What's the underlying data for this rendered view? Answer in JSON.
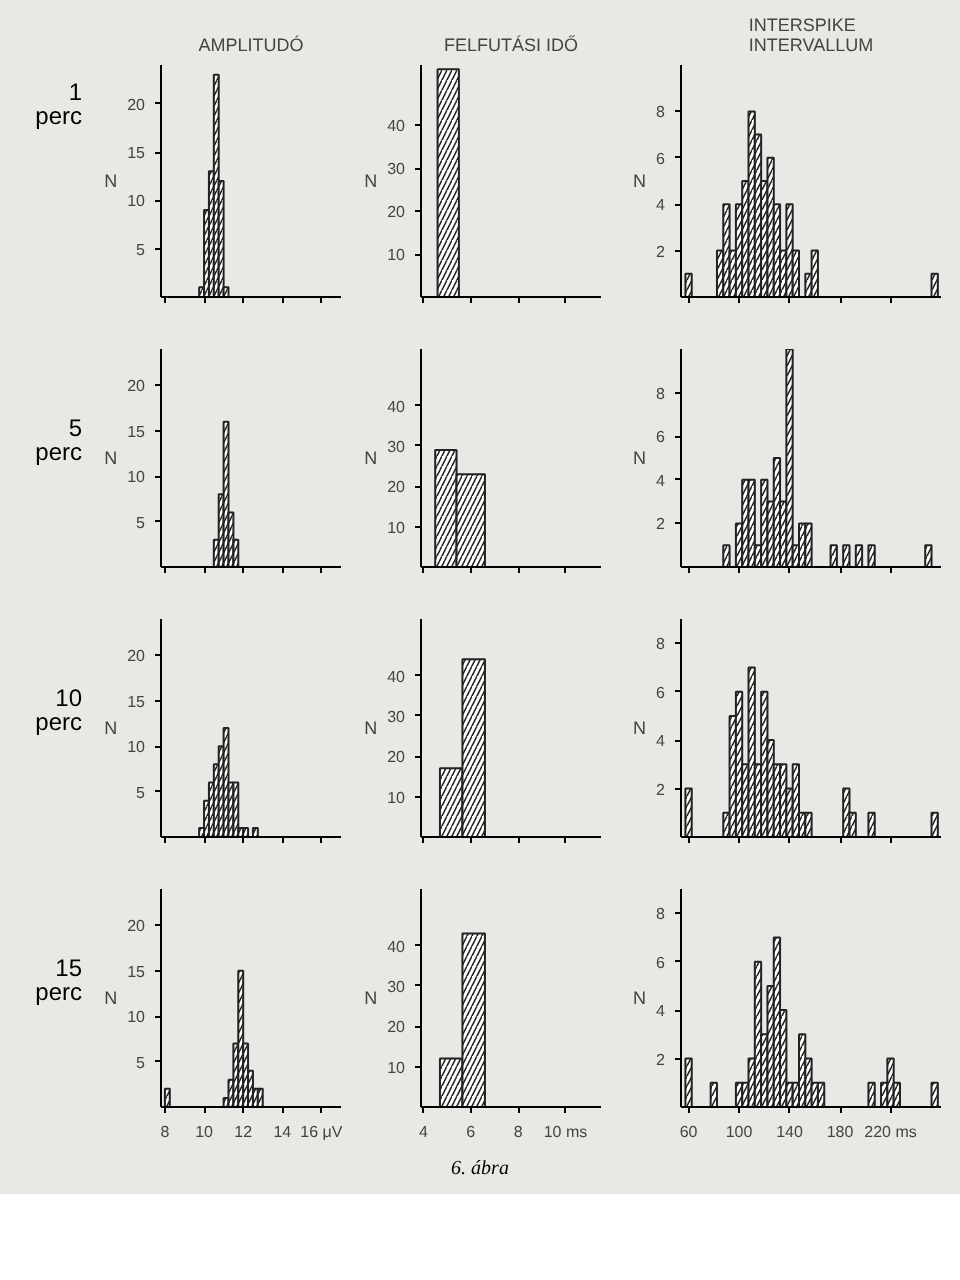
{
  "chart_data": [
    {
      "type": "histogram",
      "title": "AMPLITUDÓ",
      "ylabel": "N",
      "color": "#222222",
      "bins": [
        9.75,
        10,
        10.25,
        10.5,
        10.75,
        11,
        11.25
      ],
      "values": [
        1,
        9,
        13,
        23,
        12,
        1
      ],
      "xlim": [
        7.8,
        17
      ],
      "ylim": [
        0,
        24
      ],
      "xticks": [
        8,
        10,
        12,
        14,
        16
      ],
      "yticks": [
        5,
        10,
        15,
        20
      ],
      "tick_labels": "y",
      "annotations": [
        "1\nperc"
      ]
    },
    {
      "type": "histogram",
      "title": "FELFUTÁSI IDŐ",
      "ylabel": "N",
      "color": "#222222",
      "bins": [
        4.6,
        5.5
      ],
      "values": [
        53
      ],
      "xlim": [
        3.9,
        11.5
      ],
      "ylim": [
        0,
        54
      ],
      "xticks": [
        4,
        6,
        8,
        10
      ],
      "yticks": [
        10,
        20,
        30,
        40
      ],
      "tick_labels": "y"
    },
    {
      "type": "histogram",
      "title": "INTERSPIKE\nINTERVALLUM",
      "ylabel": "N",
      "color": "#222222",
      "bins": [
        57.5,
        62.5,
        67.5,
        72.5,
        77.5,
        82.5,
        87.5,
        92.5,
        97.5,
        102.5,
        107.5,
        112.5,
        117.5,
        122.5,
        127.5,
        132.5,
        137.5,
        142.5,
        147.5,
        152.5,
        157.5,
        162.5,
        167.5,
        172.5,
        177.5,
        182.5,
        187.5,
        192.5,
        197.5,
        202.5,
        207.5,
        212.5,
        217.5,
        222.5,
        227.5,
        232.5,
        237.5,
        242.5,
        247.5,
        252.5,
        257.5
      ],
      "values": [
        1,
        0,
        0,
        0,
        0,
        2,
        4,
        2,
        4,
        5,
        8,
        7,
        5,
        6,
        4,
        2,
        4,
        2,
        0,
        1,
        2,
        0,
        0,
        0,
        0,
        0,
        0,
        0,
        0,
        0,
        0,
        0,
        0,
        0,
        0,
        0,
        0,
        0,
        0,
        1
      ],
      "xlim": [
        54,
        260
      ],
      "ylim": [
        0,
        10
      ],
      "xticks": [
        60,
        100,
        140,
        180,
        220
      ],
      "yticks": [
        2,
        4,
        6,
        8
      ],
      "tick_labels": "y"
    },
    {
      "type": "histogram",
      "ylabel": "N",
      "color": "#222222",
      "bins": [
        10.5,
        10.75,
        11,
        11.25,
        11.5,
        11.75
      ],
      "values": [
        3,
        8,
        16,
        6,
        3
      ],
      "xlim": [
        7.8,
        17
      ],
      "ylim": [
        0,
        24
      ],
      "xticks": [
        8,
        10,
        12,
        14,
        16
      ],
      "yticks": [
        5,
        10,
        15,
        20
      ],
      "tick_labels": "y",
      "annotations": [
        "5\nperc"
      ]
    },
    {
      "type": "histogram",
      "ylabel": "N",
      "color": "#222222",
      "bins": [
        4.5,
        5.4,
        6.6
      ],
      "values": [
        29,
        23
      ],
      "xlim": [
        3.9,
        11.5
      ],
      "ylim": [
        0,
        54
      ],
      "xticks": [
        4,
        6,
        8,
        10
      ],
      "yticks": [
        10,
        20,
        30,
        40
      ],
      "tick_labels": "y"
    },
    {
      "type": "histogram",
      "ylabel": "N",
      "color": "#222222",
      "bins": [
        57.5,
        62.5,
        67.5,
        72.5,
        77.5,
        82.5,
        87.5,
        92.5,
        97.5,
        102.5,
        107.5,
        112.5,
        117.5,
        122.5,
        127.5,
        132.5,
        137.5,
        142.5,
        147.5,
        152.5,
        157.5,
        162.5,
        167.5,
        172.5,
        177.5,
        182.5,
        187.5,
        192.5,
        197.5,
        202.5,
        207.5,
        212.5,
        217.5,
        222.5,
        227.5,
        232.5,
        237.5,
        242.5,
        247.5,
        252.5,
        257.5
      ],
      "values": [
        0,
        0,
        0,
        0,
        0,
        0,
        1,
        0,
        2,
        4,
        4,
        1,
        4,
        3,
        5,
        3,
        10,
        1,
        2,
        2,
        0,
        0,
        0,
        1,
        0,
        1,
        0,
        1,
        0,
        1,
        0,
        0,
        0,
        0,
        0,
        0,
        0,
        0,
        1,
        0
      ],
      "xlim": [
        54,
        260
      ],
      "ylim": [
        0,
        10
      ],
      "xticks": [
        60,
        100,
        140,
        180,
        220
      ],
      "yticks": [
        2,
        4,
        6,
        8
      ],
      "tick_labels": "y"
    },
    {
      "type": "histogram",
      "ylabel": "N",
      "color": "#222222",
      "bins": [
        9.75,
        10,
        10.25,
        10.5,
        10.75,
        11,
        11.25,
        11.5,
        11.75,
        12,
        12.25,
        12.5,
        12.75
      ],
      "values": [
        1,
        4,
        6,
        8,
        10,
        12,
        6,
        6,
        1,
        1,
        0,
        1
      ],
      "xlim": [
        7.8,
        17
      ],
      "ylim": [
        0,
        24
      ],
      "xticks": [
        8,
        10,
        12,
        14,
        16
      ],
      "yticks": [
        5,
        10,
        15,
        20
      ],
      "tick_labels": "y",
      "annotations": [
        "10\nperc"
      ]
    },
    {
      "type": "histogram",
      "ylabel": "N",
      "color": "#222222",
      "bins": [
        4.7,
        5.65,
        6.6
      ],
      "values": [
        17,
        44
      ],
      "xlim": [
        3.9,
        11.5
      ],
      "ylim": [
        0,
        54
      ],
      "xticks": [
        4,
        6,
        8,
        10
      ],
      "yticks": [
        10,
        20,
        30,
        40
      ],
      "tick_labels": "y"
    },
    {
      "type": "histogram",
      "ylabel": "N",
      "color": "#222222",
      "bins": [
        57.5,
        62.5,
        67.5,
        72.5,
        77.5,
        82.5,
        87.5,
        92.5,
        97.5,
        102.5,
        107.5,
        112.5,
        117.5,
        122.5,
        127.5,
        132.5,
        137.5,
        142.5,
        147.5,
        152.5,
        157.5,
        162.5,
        167.5,
        172.5,
        177.5,
        182.5,
        187.5,
        192.5,
        197.5,
        202.5,
        207.5,
        212.5,
        217.5,
        222.5,
        227.5,
        232.5,
        237.5,
        242.5,
        247.5,
        252.5,
        257.5
      ],
      "values": [
        2,
        0,
        0,
        0,
        0,
        0,
        1,
        5,
        6,
        3,
        7,
        3,
        6,
        4,
        3,
        3,
        2,
        3,
        1,
        1,
        0,
        0,
        0,
        0,
        0,
        2,
        1,
        0,
        0,
        1,
        0,
        0,
        0,
        0,
        0,
        0,
        0,
        0,
        0,
        1
      ],
      "xlim": [
        54,
        260
      ],
      "ylim": [
        0,
        9
      ],
      "xticks": [
        60,
        100,
        140,
        180,
        220
      ],
      "yticks": [
        2,
        4,
        6,
        8
      ],
      "tick_labels": "y"
    },
    {
      "type": "histogram",
      "ylabel": "N",
      "color": "#222222",
      "bins": [
        8,
        8.25,
        8.5,
        8.75,
        9,
        9.25,
        9.5,
        9.75,
        10,
        10.25,
        10.5,
        10.75,
        11,
        11.25,
        11.5,
        11.75,
        12,
        12.25,
        12.5,
        12.75,
        13
      ],
      "values": [
        2,
        0,
        0,
        0,
        0,
        0,
        0,
        0,
        0,
        0,
        0,
        0,
        1,
        3,
        7,
        15,
        7,
        4,
        2,
        2
      ],
      "xlim": [
        7.8,
        17
      ],
      "ylim": [
        0,
        24
      ],
      "xticks": [
        8,
        10,
        12,
        14,
        {
          "value": 16,
          "label": "16 μV"
        }
      ],
      "yticks": [
        5,
        10,
        15,
        20
      ],
      "annotations": [
        "15\nperc"
      ]
    },
    {
      "type": "histogram",
      "ylabel": "N",
      "color": "#222222",
      "bins": [
        4.7,
        5.65,
        6.6
      ],
      "values": [
        12,
        43
      ],
      "xlim": [
        3.9,
        11.5
      ],
      "ylim": [
        0,
        54
      ],
      "xticks": [
        4,
        6,
        8,
        {
          "value": 10,
          "label": "10 ms"
        }
      ],
      "yticks": [
        10,
        20,
        30,
        40
      ],
      "annotations": [
        "6. ábra"
      ]
    },
    {
      "type": "histogram",
      "ylabel": "N",
      "color": "#222222",
      "bins": [
        57.5,
        62.5,
        67.5,
        72.5,
        77.5,
        82.5,
        87.5,
        92.5,
        97.5,
        102.5,
        107.5,
        112.5,
        117.5,
        122.5,
        127.5,
        132.5,
        137.5,
        142.5,
        147.5,
        152.5,
        157.5,
        162.5,
        167.5,
        172.5,
        177.5,
        182.5,
        187.5,
        192.5,
        197.5,
        202.5,
        207.5,
        212.5,
        217.5,
        222.5,
        227.5,
        232.5,
        237.5,
        242.5,
        247.5,
        252.5,
        257.5
      ],
      "values": [
        2,
        0,
        0,
        0,
        1,
        0,
        0,
        0,
        1,
        1,
        2,
        6,
        3,
        5,
        7,
        4,
        1,
        1,
        3,
        2,
        1,
        1,
        0,
        0,
        0,
        0,
        0,
        0,
        0,
        1,
        0,
        1,
        2,
        1,
        0,
        0,
        0,
        0,
        0,
        1
      ],
      "xlim": [
        54,
        260
      ],
      "ylim": [
        0,
        9
      ],
      "xticks": [
        60,
        100,
        140,
        180,
        {
          "value": 220,
          "label": "220 ms"
        }
      ],
      "yticks": [
        2,
        4,
        6,
        8
      ]
    }
  ]
}
